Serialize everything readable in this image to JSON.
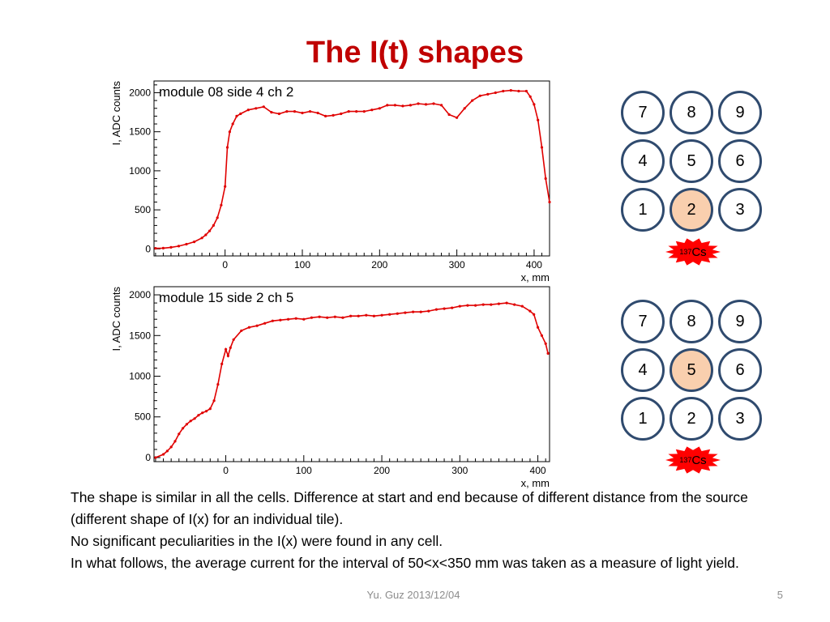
{
  "slide": {
    "title": "The I(t) shapes",
    "description": [
      "The shape is similar in all the cells. Difference at start and end because of different distance from the source (different shape of I(x) for an individual tile).",
      "No significant peculiarities in the I(x) were found in any cell.",
      "In what follows, the average current for the interval of 50<x<350 mm was taken as a measure of light yield."
    ],
    "footer": "Yu. Guz 2013/12/04",
    "page_number": "5"
  },
  "colors": {
    "title": "#c00000",
    "data_line": "#e00000",
    "cell_border": "#2f4a6e",
    "cell_active": "#f9cfae",
    "source_badge": "#ff0000"
  },
  "cell_grids": [
    {
      "cells": [
        "7",
        "8",
        "9",
        "4",
        "5",
        "6",
        "1",
        "2",
        "3"
      ],
      "active": "2",
      "source": {
        "mass": "137",
        "element": "Cs"
      }
    },
    {
      "cells": [
        "7",
        "8",
        "9",
        "4",
        "5",
        "6",
        "1",
        "2",
        "3"
      ],
      "active": "5",
      "source": {
        "mass": "137",
        "element": "Cs"
      }
    }
  ],
  "chart_data": [
    {
      "type": "line",
      "title": "module 08 side 4 ch 2",
      "xlabel": "x, mm",
      "ylabel": "I, ADC counts",
      "xlim": [
        -92,
        420
      ],
      "ylim": [
        -90,
        2150
      ],
      "xticks": [
        0,
        100,
        200,
        300,
        400
      ],
      "yticks": [
        0,
        500,
        1000,
        1500,
        2000
      ],
      "grid": false,
      "series": [
        {
          "x": [
            -90,
            -80,
            -70,
            -60,
            -50,
            -40,
            -30,
            -25,
            -20,
            -15,
            -10,
            -5,
            0,
            3,
            6,
            10,
            15,
            20,
            30,
            40,
            50,
            60,
            70,
            80,
            90,
            100,
            110,
            120,
            130,
            140,
            150,
            160,
            170,
            180,
            190,
            200,
            210,
            220,
            230,
            240,
            250,
            260,
            270,
            280,
            290,
            300,
            310,
            320,
            330,
            340,
            350,
            360,
            370,
            380,
            390,
            395,
            400,
            405,
            410,
            415,
            420
          ],
          "y": [
            8,
            10,
            20,
            35,
            60,
            90,
            140,
            180,
            230,
            300,
            400,
            560,
            800,
            1300,
            1500,
            1600,
            1700,
            1730,
            1780,
            1800,
            1820,
            1750,
            1730,
            1760,
            1760,
            1740,
            1760,
            1740,
            1700,
            1710,
            1730,
            1760,
            1760,
            1760,
            1780,
            1800,
            1840,
            1840,
            1830,
            1840,
            1860,
            1850,
            1860,
            1840,
            1720,
            1680,
            1800,
            1900,
            1960,
            1980,
            2000,
            2020,
            2030,
            2020,
            2020,
            1950,
            1850,
            1650,
            1300,
            900,
            600
          ]
        }
      ]
    },
    {
      "type": "line",
      "title": "module 15 side 2 ch 5",
      "xlabel": "x, mm",
      "ylabel": "I, ADC counts",
      "xlim": [
        -92,
        415
      ],
      "ylim": [
        -50,
        2100
      ],
      "xticks": [
        0,
        100,
        200,
        300,
        400
      ],
      "yticks": [
        0,
        500,
        1000,
        1500,
        2000
      ],
      "grid": false,
      "series": [
        {
          "x": [
            -90,
            -80,
            -75,
            -70,
            -65,
            -60,
            -55,
            -50,
            -45,
            -40,
            -35,
            -30,
            -25,
            -20,
            -15,
            -10,
            -5,
            0,
            3,
            6,
            10,
            20,
            30,
            40,
            50,
            60,
            70,
            80,
            90,
            100,
            110,
            120,
            130,
            140,
            150,
            160,
            170,
            180,
            190,
            200,
            210,
            220,
            230,
            240,
            250,
            260,
            270,
            280,
            290,
            300,
            310,
            320,
            330,
            340,
            350,
            360,
            370,
            380,
            390,
            395,
            400,
            405,
            410,
            413
          ],
          "y": [
            0,
            40,
            80,
            130,
            200,
            290,
            360,
            410,
            450,
            480,
            520,
            550,
            570,
            600,
            700,
            900,
            1150,
            1330,
            1250,
            1350,
            1450,
            1560,
            1600,
            1620,
            1650,
            1680,
            1690,
            1700,
            1710,
            1700,
            1720,
            1730,
            1720,
            1730,
            1720,
            1740,
            1740,
            1750,
            1740,
            1750,
            1760,
            1770,
            1780,
            1790,
            1790,
            1800,
            1820,
            1830,
            1840,
            1860,
            1870,
            1870,
            1880,
            1880,
            1890,
            1900,
            1880,
            1860,
            1800,
            1760,
            1600,
            1500,
            1400,
            1280
          ]
        }
      ]
    }
  ]
}
